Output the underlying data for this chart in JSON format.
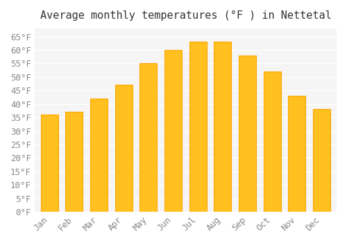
{
  "title": "Average monthly temperatures (°F ) in Nettetal",
  "months": [
    "Jan",
    "Feb",
    "Mar",
    "Apr",
    "May",
    "Jun",
    "Jul",
    "Aug",
    "Sep",
    "Oct",
    "Nov",
    "Dec"
  ],
  "values": [
    36,
    37,
    42,
    47,
    55,
    60,
    63,
    63,
    58,
    52,
    43,
    38
  ],
  "bar_color_face": "#FFC020",
  "bar_color_edge": "#FFA500",
  "background_color": "#FFFFFF",
  "plot_bg_color": "#F5F5F5",
  "grid_color": "#FFFFFF",
  "ylim": [
    0,
    68
  ],
  "yticks": [
    0,
    5,
    10,
    15,
    20,
    25,
    30,
    35,
    40,
    45,
    50,
    55,
    60,
    65
  ],
  "ylabel_suffix": "°F",
  "title_fontsize": 11,
  "tick_fontsize": 9,
  "font_family": "monospace"
}
